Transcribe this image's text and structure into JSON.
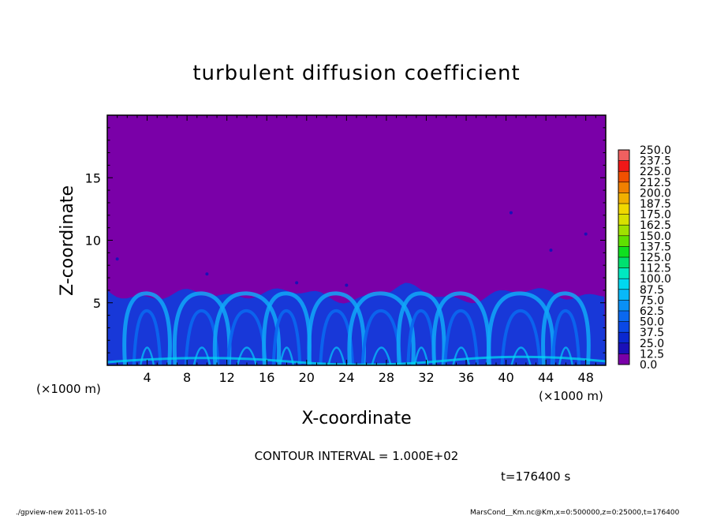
{
  "chart_data": {
    "type": "heatmap",
    "title": "turbulent diffusion coefficient",
    "xlabel": "X-coordinate",
    "ylabel": "Z-coordinate",
    "x_unit": "(×1000 m)",
    "y_unit": "(×1000 m)",
    "xlim": [
      0,
      50
    ],
    "ylim": [
      0,
      20
    ],
    "x_ticks": [
      4,
      8,
      12,
      16,
      20,
      24,
      28,
      32,
      36,
      40,
      44,
      48
    ],
    "y_ticks": [
      5,
      10,
      15
    ],
    "colorbar": {
      "levels": [
        0.0,
        12.5,
        25.0,
        37.5,
        50.0,
        62.5,
        75.0,
        87.5,
        100.0,
        112.5,
        125.0,
        137.5,
        150.0,
        162.5,
        175.0,
        187.5,
        200.0,
        212.5,
        225.0,
        237.5,
        250.0
      ],
      "level_labels": [
        "0.0",
        "12.5",
        "25.0",
        "37.5",
        "50.0",
        "62.5",
        "75.0",
        "87.5",
        "100.0",
        "112.5",
        "125.0",
        "137.5",
        "150.0",
        "162.5",
        "175.0",
        "187.5",
        "200.0",
        "212.5",
        "225.0",
        "237.5",
        "250.0"
      ],
      "colors": [
        "#7a00a8",
        "#1a10b8",
        "#0a28d0",
        "#0a48e6",
        "#0a68f0",
        "#0a90f6",
        "#08b8f8",
        "#00d8f0",
        "#00e8c0",
        "#00e070",
        "#10e020",
        "#60e000",
        "#a0e000",
        "#d8e000",
        "#f0d800",
        "#f0b000",
        "#f08000",
        "#f05000",
        "#f01818",
        "#f06060"
      ]
    },
    "boundary_layer_top_km": 6.0,
    "background_value": 0.0
  },
  "annotations": {
    "contour_interval": "CONTOUR INTERVAL = 1.000E+02",
    "time": "t=176400  s",
    "footer_left": "./gpview-new   2011-05-10",
    "footer_right": "MarsCond__Km.nc@Km,x=0:500000,z=0:25000,t=176400"
  }
}
